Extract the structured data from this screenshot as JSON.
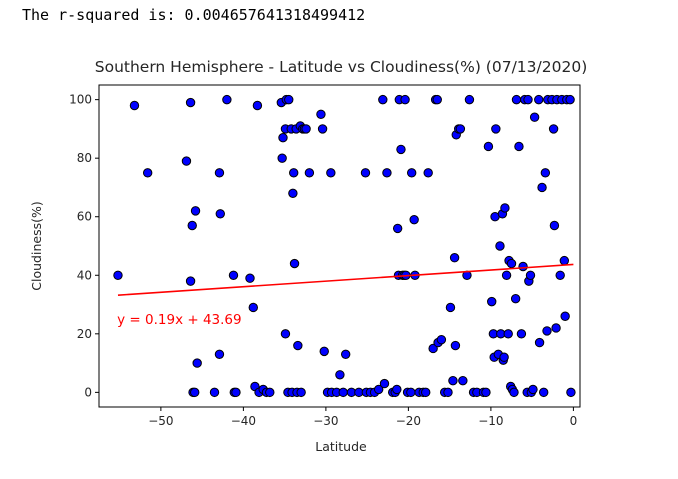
{
  "output": {
    "rsquared_text": "The r-squared is: 0.004657641318499412"
  },
  "chart_data": {
    "type": "scatter",
    "title": "Southern Hemisphere - Latitude vs Cloudiness(%) (07/13/2020)",
    "xlabel": "Latitude",
    "ylabel": "Cloudiness(%)",
    "xlim": [
      -57.5,
      0.8
    ],
    "ylim": [
      -5,
      105
    ],
    "xticks": [
      -50,
      -40,
      -30,
      -20,
      -10,
      0
    ],
    "xtick_labels": [
      "−50",
      "−40",
      "−30",
      "−20",
      "−10",
      "0"
    ],
    "yticks": [
      0,
      20,
      40,
      60,
      80,
      100
    ],
    "ytick_labels": [
      "0",
      "20",
      "40",
      "60",
      "80",
      "100"
    ],
    "marker_fill": "#0000ff",
    "marker_edge": "#000000",
    "regression_color": "#ff0000",
    "regression": {
      "slope": 0.19,
      "intercept": 43.69,
      "x_range": [
        -55.2,
        0
      ]
    },
    "annotation": {
      "text": "y = 0.19x + 43.69",
      "x": -55.3,
      "y": 25
    },
    "points": [
      [
        -55.2,
        40
      ],
      [
        -53.2,
        98
      ],
      [
        -51.6,
        75
      ],
      [
        -46.9,
        79
      ],
      [
        -46.4,
        99
      ],
      [
        -46.4,
        38
      ],
      [
        -46.2,
        57
      ],
      [
        -45.8,
        62
      ],
      [
        -46.1,
        0
      ],
      [
        -45.9,
        0
      ],
      [
        -45.6,
        10
      ],
      [
        -43.5,
        0
      ],
      [
        -42.9,
        75
      ],
      [
        -42.8,
        61
      ],
      [
        -42.9,
        13
      ],
      [
        -42.0,
        100
      ],
      [
        -41.2,
        40
      ],
      [
        -41.1,
        0
      ],
      [
        -40.9,
        0
      ],
      [
        -39.2,
        39
      ],
      [
        -38.8,
        29
      ],
      [
        -38.6,
        2
      ],
      [
        -38.3,
        98
      ],
      [
        -38.1,
        0
      ],
      [
        -37.6,
        1
      ],
      [
        -37.2,
        0
      ],
      [
        -36.8,
        0
      ],
      [
        -35.4,
        99
      ],
      [
        -35.2,
        87
      ],
      [
        -35.3,
        80
      ],
      [
        -34.9,
        90
      ],
      [
        -34.8,
        100
      ],
      [
        -34.5,
        100
      ],
      [
        -34.2,
        90
      ],
      [
        -34.0,
        68
      ],
      [
        -33.9,
        75
      ],
      [
        -33.8,
        44
      ],
      [
        -33.6,
        90
      ],
      [
        -33.4,
        16
      ],
      [
        -33.1,
        91
      ],
      [
        -32.8,
        90
      ],
      [
        -32.6,
        90
      ],
      [
        -32.4,
        90
      ],
      [
        -34.9,
        20
      ],
      [
        -34.6,
        0
      ],
      [
        -34.1,
        0
      ],
      [
        -33.5,
        0
      ],
      [
        -33.0,
        0
      ],
      [
        -32.0,
        75
      ],
      [
        -30.6,
        95
      ],
      [
        -30.4,
        90
      ],
      [
        -30.2,
        14
      ],
      [
        -29.4,
        75
      ],
      [
        -29.8,
        0
      ],
      [
        -29.3,
        0
      ],
      [
        -28.7,
        0
      ],
      [
        -27.9,
        0
      ],
      [
        -28.3,
        6
      ],
      [
        -27.6,
        13
      ],
      [
        -26.9,
        0
      ],
      [
        -26.0,
        0
      ],
      [
        -25.1,
        0
      ],
      [
        -25.2,
        75
      ],
      [
        -24.6,
        0
      ],
      [
        -24.1,
        0
      ],
      [
        -23.6,
        1
      ],
      [
        -23.1,
        100
      ],
      [
        -22.9,
        3
      ],
      [
        -22.6,
        75
      ],
      [
        -21.9,
        0
      ],
      [
        -21.6,
        0
      ],
      [
        -21.4,
        1
      ],
      [
        -21.3,
        56
      ],
      [
        -21.2,
        40
      ],
      [
        -21.1,
        100
      ],
      [
        -20.9,
        83
      ],
      [
        -20.7,
        40
      ],
      [
        -20.5,
        40
      ],
      [
        -20.4,
        100
      ],
      [
        -20.3,
        40
      ],
      [
        -20.1,
        0
      ],
      [
        -19.7,
        0
      ],
      [
        -19.6,
        75
      ],
      [
        -19.3,
        59
      ],
      [
        -19.2,
        40
      ],
      [
        -18.7,
        0
      ],
      [
        -18.2,
        0
      ],
      [
        -17.9,
        0
      ],
      [
        -17.6,
        75
      ],
      [
        -17.0,
        15
      ],
      [
        -16.7,
        100
      ],
      [
        -16.5,
        100
      ],
      [
        -16.4,
        17
      ],
      [
        -16.0,
        18
      ],
      [
        -15.6,
        0
      ],
      [
        -15.2,
        0
      ],
      [
        -14.9,
        29
      ],
      [
        -14.6,
        4
      ],
      [
        -14.4,
        46
      ],
      [
        -14.3,
        16
      ],
      [
        -14.2,
        88
      ],
      [
        -13.9,
        90
      ],
      [
        -13.7,
        90
      ],
      [
        -13.4,
        4
      ],
      [
        -12.9,
        40
      ],
      [
        -12.6,
        100
      ],
      [
        -12.1,
        0
      ],
      [
        -11.7,
        0
      ],
      [
        -10.9,
        0
      ],
      [
        -10.6,
        0
      ],
      [
        -10.3,
        84
      ],
      [
        -9.9,
        31
      ],
      [
        -9.7,
        20
      ],
      [
        -9.6,
        12
      ],
      [
        -9.5,
        60
      ],
      [
        -9.4,
        90
      ],
      [
        -9.1,
        13
      ],
      [
        -8.9,
        50
      ],
      [
        -8.8,
        20
      ],
      [
        -8.6,
        61
      ],
      [
        -8.5,
        11
      ],
      [
        -8.4,
        12
      ],
      [
        -8.3,
        63
      ],
      [
        -8.1,
        40
      ],
      [
        -7.9,
        20
      ],
      [
        -7.8,
        45
      ],
      [
        -7.6,
        2
      ],
      [
        -7.5,
        44
      ],
      [
        -7.4,
        1
      ],
      [
        -7.2,
        0
      ],
      [
        -7.0,
        32
      ],
      [
        -6.9,
        100
      ],
      [
        -6.6,
        84
      ],
      [
        -6.3,
        20
      ],
      [
        -6.1,
        43
      ],
      [
        -5.9,
        100
      ],
      [
        -5.6,
        0
      ],
      [
        -5.5,
        100
      ],
      [
        -5.4,
        38
      ],
      [
        -5.2,
        40
      ],
      [
        -5.1,
        0
      ],
      [
        -4.9,
        1
      ],
      [
        -4.7,
        94
      ],
      [
        -4.2,
        100
      ],
      [
        -4.1,
        17
      ],
      [
        -3.8,
        70
      ],
      [
        -3.6,
        0
      ],
      [
        -3.4,
        75
      ],
      [
        -3.2,
        21
      ],
      [
        -3.1,
        100
      ],
      [
        -2.6,
        100
      ],
      [
        -2.4,
        90
      ],
      [
        -2.3,
        57
      ],
      [
        -2.1,
        22
      ],
      [
        -2.0,
        100
      ],
      [
        -1.6,
        40
      ],
      [
        -1.4,
        100
      ],
      [
        -1.1,
        45
      ],
      [
        -1.0,
        26
      ],
      [
        -0.8,
        100
      ],
      [
        -0.4,
        100
      ],
      [
        -0.3,
        0
      ]
    ]
  }
}
